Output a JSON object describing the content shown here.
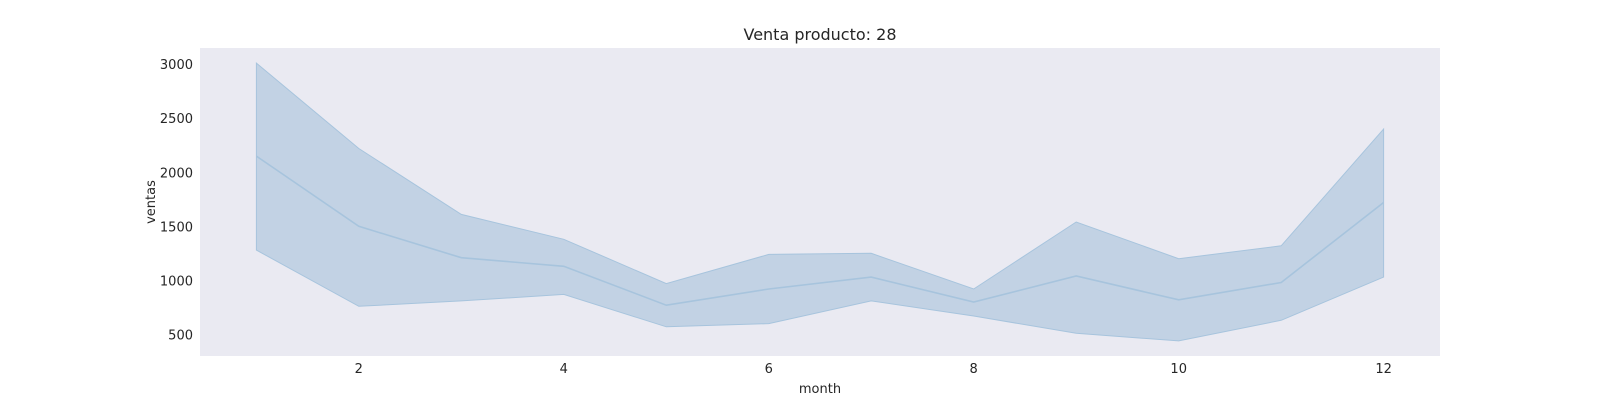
{
  "chart_data": {
    "type": "line",
    "title": "Venta producto: 28",
    "xlabel": "month",
    "ylabel": "ventas",
    "xlim": [
      0.45,
      12.55
    ],
    "ylim": [
      300,
      3150
    ],
    "xticks": [
      2,
      4,
      6,
      8,
      10,
      12
    ],
    "yticks": [
      500,
      1000,
      1500,
      2000,
      2500,
      3000
    ],
    "grid": false,
    "colors": {
      "plot_background": "#eaeaf2",
      "line": "#a7c4dd",
      "band": "#c2d2e4"
    },
    "series": [
      {
        "x": [
          1,
          2,
          3,
          4,
          5,
          6,
          7,
          8,
          9,
          10,
          11,
          12
        ],
        "y": [
          2150,
          1500,
          1210,
          1130,
          770,
          920,
          1030,
          800,
          1040,
          820,
          980,
          1720
        ],
        "ci_lower": [
          1280,
          760,
          810,
          870,
          570,
          600,
          810,
          670,
          510,
          440,
          630,
          1030
        ],
        "ci_upper": [
          3010,
          2220,
          1610,
          1380,
          970,
          1240,
          1250,
          920,
          1540,
          1200,
          1320,
          2400
        ]
      }
    ]
  }
}
